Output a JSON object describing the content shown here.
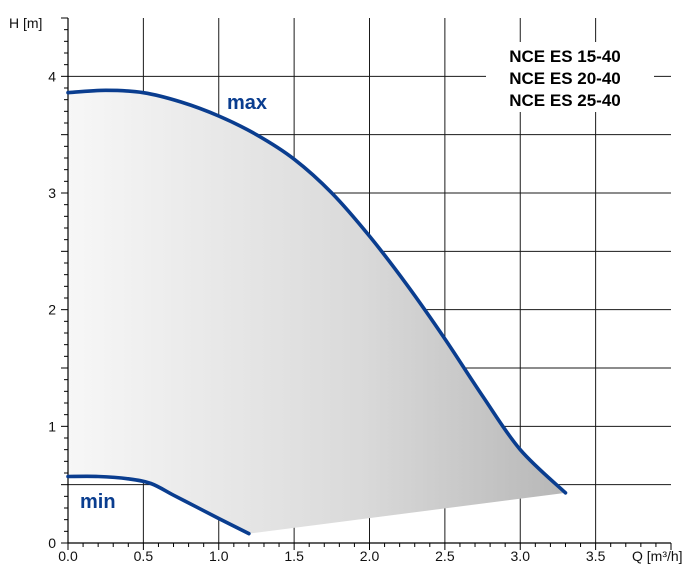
{
  "chart_data": {
    "type": "line",
    "title": "",
    "xlabel": "Q [m³/h]",
    "ylabel": "H [m]",
    "xlim": [
      0,
      4.0
    ],
    "ylim": [
      0,
      4.5
    ],
    "x_ticks": [
      "0.0",
      "0.5",
      "1.0",
      "1.5",
      "2.0",
      "2.5",
      "3.0",
      "3.5"
    ],
    "y_ticks": [
      "0",
      "1",
      "2",
      "3",
      "4"
    ],
    "grid": true,
    "models": [
      "NCE ES 15-40",
      "NCE ES 20-40",
      "NCE ES 25-40"
    ],
    "series": [
      {
        "name": "max",
        "color": "#0a3d8f",
        "x": [
          0.0,
          0.25,
          0.5,
          0.75,
          1.0,
          1.25,
          1.5,
          1.75,
          2.0,
          2.25,
          2.5,
          2.75,
          3.0,
          3.3
        ],
        "y": [
          3.86,
          3.88,
          3.86,
          3.78,
          3.66,
          3.5,
          3.29,
          3.0,
          2.63,
          2.21,
          1.75,
          1.26,
          0.8,
          0.43
        ]
      },
      {
        "name": "min",
        "color": "#0a3d8f",
        "x": [
          0.0,
          0.2,
          0.4,
          0.55,
          0.7,
          0.85,
          1.0,
          1.2
        ],
        "y": [
          0.57,
          0.57,
          0.55,
          0.51,
          0.41,
          0.31,
          0.21,
          0.08
        ]
      }
    ]
  }
}
